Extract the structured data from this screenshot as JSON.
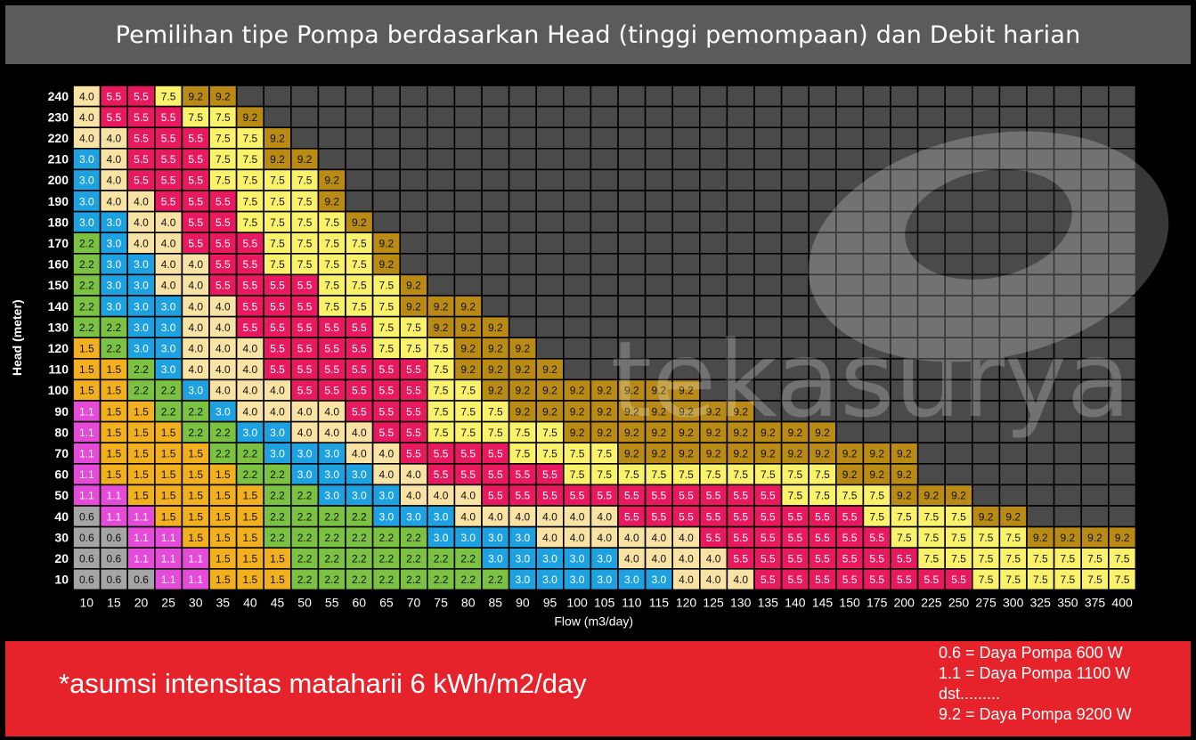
{
  "title": "Pemilihan tipe Pompa berdasarkan Head (tinggi pemompaan) dan Debit harian",
  "footnote": "*asumsi intensitas mataharii  6 kWh/m2/day",
  "legend_lines": [
    "0.6 = Daya Pompa 600 W",
    "1.1 = Daya Pompa 1100 W",
    "dst.........",
    "9.2 = Daya Pompa 9200 W"
  ],
  "watermark": "tekasurya",
  "colors": {
    "0.6": "#a5a5a5",
    "1.1": "#e54bd8",
    "1.5": "#f2b01e",
    "2.2": "#7cc242",
    "3.0": "#1ea1e0",
    "4.0": "#f8e3a5",
    "5.5": "#e8195e",
    "7.5": "#fbf26c",
    "9.2": "#b98b15",
    "empty": "#4a4a4a"
  },
  "chart_data": {
    "type": "heatmap",
    "xlabel": "Flow (m3/day)",
    "ylabel": "Head (meter)",
    "x": [
      "10",
      "15",
      "20",
      "25",
      "30",
      "35",
      "40",
      "45",
      "50",
      "55",
      "60",
      "65",
      "70",
      "75",
      "80",
      "85",
      "90",
      "95",
      "100",
      "105",
      "110",
      "115",
      "120",
      "125",
      "130",
      "135",
      "140",
      "145",
      "150",
      "175",
      "200",
      "225",
      "250",
      "275",
      "300",
      "325",
      "350",
      "375",
      "400"
    ],
    "y": [
      "240",
      "230",
      "220",
      "210",
      "200",
      "190",
      "180",
      "170",
      "160",
      "150",
      "140",
      "130",
      "120",
      "110",
      "100",
      "90",
      "80",
      "70",
      "60",
      "50",
      "40",
      "30",
      "20",
      "10"
    ],
    "rows": [
      [
        "4.0",
        "5.5",
        "5.5",
        "7.5",
        "9.2",
        "9.2"
      ],
      [
        "4.0",
        "5.5",
        "5.5",
        "5.5",
        "7.5",
        "7.5",
        "9.2"
      ],
      [
        "4.0",
        "4.0",
        "5.5",
        "5.5",
        "5.5",
        "7.5",
        "7.5",
        "9.2"
      ],
      [
        "3.0",
        "4.0",
        "5.5",
        "5.5",
        "5.5",
        "7.5",
        "7.5",
        "9.2",
        "9.2"
      ],
      [
        "3.0",
        "4.0",
        "5.5",
        "5.5",
        "5.5",
        "7.5",
        "7.5",
        "7.5",
        "7.5",
        "9.2"
      ],
      [
        "3.0",
        "4.0",
        "4.0",
        "5.5",
        "5.5",
        "5.5",
        "7.5",
        "7.5",
        "7.5",
        "9.2"
      ],
      [
        "3.0",
        "3.0",
        "4.0",
        "4.0",
        "5.5",
        "5.5",
        "7.5",
        "7.5",
        "7.5",
        "7.5",
        "9.2"
      ],
      [
        "2.2",
        "3.0",
        "4.0",
        "4.0",
        "5.5",
        "5.5",
        "5.5",
        "7.5",
        "7.5",
        "7.5",
        "7.5",
        "9.2"
      ],
      [
        "2.2",
        "3.0",
        "3.0",
        "4.0",
        "4.0",
        "5.5",
        "5.5",
        "7.5",
        "7.5",
        "7.5",
        "7.5",
        "9.2"
      ],
      [
        "2.2",
        "3.0",
        "3.0",
        "4.0",
        "4.0",
        "5.5",
        "5.5",
        "5.5",
        "5.5",
        "7.5",
        "7.5",
        "7.5",
        "9.2"
      ],
      [
        "2.2",
        "3.0",
        "3.0",
        "3.0",
        "4.0",
        "4.0",
        "5.5",
        "5.5",
        "5.5",
        "7.5",
        "7.5",
        "7.5",
        "9.2",
        "9.2",
        "9.2"
      ],
      [
        "2.2",
        "2.2",
        "3.0",
        "3.0",
        "4.0",
        "4.0",
        "5.5",
        "5.5",
        "5.5",
        "5.5",
        "5.5",
        "7.5",
        "7.5",
        "9.2",
        "9.2",
        "9.2"
      ],
      [
        "1.5",
        "2.2",
        "3.0",
        "3.0",
        "4.0",
        "4.0",
        "4.0",
        "5.5",
        "5.5",
        "5.5",
        "5.5",
        "7.5",
        "7.5",
        "7.5",
        "9.2",
        "9.2",
        "9.2"
      ],
      [
        "1.5",
        "1.5",
        "2.2",
        "3.0",
        "4.0",
        "4.0",
        "4.0",
        "5.5",
        "5.5",
        "5.5",
        "5.5",
        "5.5",
        "5.5",
        "7.5",
        "9.2",
        "9.2",
        "9.2",
        "9.2"
      ],
      [
        "1.5",
        "1.5",
        "2.2",
        "2.2",
        "3.0",
        "4.0",
        "4.0",
        "4.0",
        "5.5",
        "5.5",
        "5.5",
        "5.5",
        "5.5",
        "7.5",
        "7.5",
        "9.2",
        "9.2",
        "9.2",
        "9.2",
        "9.2",
        "9.2",
        "9.2",
        "9.2"
      ],
      [
        "1.1",
        "1.5",
        "1.5",
        "2.2",
        "2.2",
        "3.0",
        "4.0",
        "4.0",
        "4.0",
        "4.0",
        "5.5",
        "5.5",
        "5.5",
        "7.5",
        "7.5",
        "7.5",
        "9.2",
        "9.2",
        "9.2",
        "9.2",
        "9.2",
        "9.2",
        "9.2",
        "9.2",
        "9.2"
      ],
      [
        "1.1",
        "1.5",
        "1.5",
        "1.5",
        "2.2",
        "2.2",
        "3.0",
        "3.0",
        "4.0",
        "4.0",
        "4.0",
        "5.5",
        "5.5",
        "7.5",
        "7.5",
        "7.5",
        "7.5",
        "7.5",
        "9.2",
        "9.2",
        "9.2",
        "9.2",
        "9.2",
        "9.2",
        "9.2",
        "9.2",
        "9.2",
        "9.2"
      ],
      [
        "1.1",
        "1.5",
        "1.5",
        "1.5",
        "1.5",
        "2.2",
        "2.2",
        "3.0",
        "3.0",
        "3.0",
        "4.0",
        "4.0",
        "5.5",
        "5.5",
        "5.5",
        "5.5",
        "7.5",
        "7.5",
        "7.5",
        "7.5",
        "9.2",
        "9.2",
        "9.2",
        "9.2",
        "9.2",
        "9.2",
        "9.2",
        "9.2",
        "9.2",
        "9.2",
        "9.2"
      ],
      [
        "1.1",
        "1.5",
        "1.5",
        "1.5",
        "1.5",
        "1.5",
        "2.2",
        "2.2",
        "3.0",
        "3.0",
        "3.0",
        "4.0",
        "4.0",
        "5.5",
        "5.5",
        "5.5",
        "5.5",
        "5.5",
        "7.5",
        "7.5",
        "7.5",
        "7.5",
        "7.5",
        "7.5",
        "7.5",
        "7.5",
        "7.5",
        "7.5",
        "9.2",
        "9.2",
        "9.2"
      ],
      [
        "1.1",
        "1.1",
        "1.5",
        "1.5",
        "1.5",
        "1.5",
        "1.5",
        "2.2",
        "2.2",
        "3.0",
        "3.0",
        "3.0",
        "4.0",
        "4.0",
        "4.0",
        "5.5",
        "5.5",
        "5.5",
        "5.5",
        "5.5",
        "5.5",
        "5.5",
        "5.5",
        "5.5",
        "5.5",
        "5.5",
        "7.5",
        "7.5",
        "7.5",
        "7.5",
        "9.2",
        "9.2",
        "9.2"
      ],
      [
        "0.6",
        "1.1",
        "1.1",
        "1.5",
        "1.5",
        "1.5",
        "1.5",
        "2.2",
        "2.2",
        "2.2",
        "2.2",
        "3.0",
        "3.0",
        "3.0",
        "4.0",
        "4.0",
        "4.0",
        "4.0",
        "4.0",
        "4.0",
        "5.5",
        "5.5",
        "5.5",
        "5.5",
        "5.5",
        "5.5",
        "5.5",
        "5.5",
        "5.5",
        "7.5",
        "7.5",
        "7.5",
        "7.5",
        "9.2",
        "9.2"
      ],
      [
        "0.6",
        "0.6",
        "1.1",
        "1.1",
        "1.5",
        "1.5",
        "1.5",
        "2.2",
        "2.2",
        "2.2",
        "2.2",
        "2.2",
        "2.2",
        "3.0",
        "3.0",
        "3.0",
        "3.0",
        "4.0",
        "4.0",
        "4.0",
        "4.0",
        "4.0",
        "4.0",
        "5.5",
        "5.5",
        "5.5",
        "5.5",
        "5.5",
        "5.5",
        "5.5",
        "7.5",
        "7.5",
        "7.5",
        "7.5",
        "7.5",
        "9.2",
        "9.2",
        "9.2",
        "9.2"
      ],
      [
        "0.6",
        "0.6",
        "1.1",
        "1.1",
        "1.1",
        "1.5",
        "1.5",
        "1.5",
        "2.2",
        "2.2",
        "2.2",
        "2.2",
        "2.2",
        "2.2",
        "2.2",
        "3.0",
        "3.0",
        "3.0",
        "3.0",
        "3.0",
        "4.0",
        "4.0",
        "4.0",
        "4.0",
        "5.5",
        "5.5",
        "5.5",
        "5.5",
        "5.5",
        "5.5",
        "5.5",
        "7.5",
        "7.5",
        "7.5",
        "7.5",
        "7.5",
        "7.5",
        "7.5",
        "7.5"
      ],
      [
        "0.6",
        "0.6",
        "0.6",
        "1.1",
        "1.1",
        "1.5",
        "1.5",
        "1.5",
        "2.2",
        "2.2",
        "2.2",
        "2.2",
        "2.2",
        "2.2",
        "2.2",
        "2.2",
        "3.0",
        "3.0",
        "3.0",
        "3.0",
        "3.0",
        "3.0",
        "4.0",
        "4.0",
        "4.0",
        "5.5",
        "5.5",
        "5.5",
        "5.5",
        "5.5",
        "5.5",
        "5.5",
        "5.5",
        "7.5",
        "7.5",
        "7.5",
        "7.5",
        "7.5",
        "7.5"
      ]
    ]
  }
}
